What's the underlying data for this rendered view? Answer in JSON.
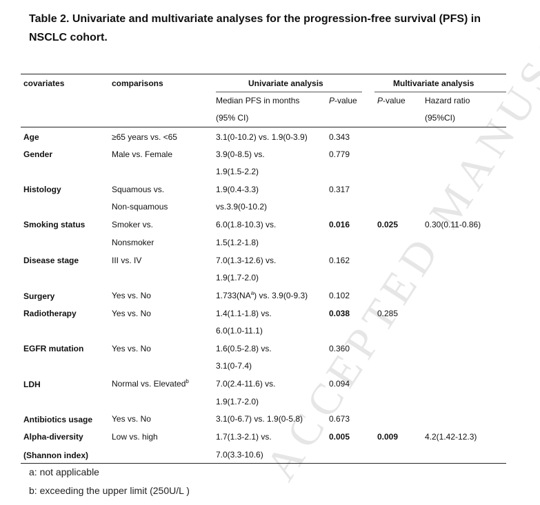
{
  "title": "Table 2. Univariate and multivariate analyses for the progression-free survival (PFS) in NSCLC cohort.",
  "watermark": "ACCEPTED MANUSCRIPT",
  "headers": {
    "covariates": "covariates",
    "comparisons": "comparisons",
    "univariate": "Univariate analysis",
    "multivariate": "Multivariate analysis",
    "median_pfs_1": "Median PFS in months",
    "median_pfs_2": "(95% CI)",
    "uni_p_italic": "P",
    "uni_p_rest": "-value",
    "multi_p_italic": "P",
    "multi_p_rest": "-value",
    "hazard_1": "Hazard ratio",
    "hazard_2": "(95%CI)"
  },
  "rows": [
    {
      "covariate": "Age",
      "comparison": "≥65 years vs. <65",
      "pfs": "3.1(0-10.2) vs. 1.9(0-3.9)",
      "p": "0.343"
    },
    {
      "covariate": "Gender",
      "comparison": "Male vs. Female",
      "pfs_1": "3.9(0-8.5) vs.",
      "pfs_2": "1.9(1.5-2.2)",
      "p": "0.779"
    },
    {
      "covariate": "Histology",
      "comparison_1": "Squamous vs.",
      "comparison_2": "Non-squamous",
      "pfs_1": "1.9(0.4-3.3)",
      "pfs_2": "vs.3.9(0-10.2)",
      "p": "0.317"
    },
    {
      "covariate": "Smoking status",
      "comparison_1": "Smoker vs.",
      "comparison_2": "Nonsmoker",
      "pfs_1": "6.0(1.8-10.3) vs.",
      "pfs_2": "1.5(1.2-1.8)",
      "p": "0.016",
      "multi_p": "0.025",
      "hr": "0.30(0.11-0.86)"
    },
    {
      "covariate": "Disease stage",
      "comparison": "III vs. IV",
      "pfs_1": "7.0(1.3-12.6) vs.",
      "pfs_2": "1.9(1.7-2.0)",
      "p": "0.162"
    },
    {
      "covariate": "Surgery",
      "comparison": "Yes vs. No",
      "pfs_a": "1.733(NA",
      "pfs_sup": "a",
      "pfs_b": ") vs. 3.9(0-9.3)",
      "p": "0.102"
    },
    {
      "covariate": "Radiotherapy",
      "comparison": "Yes vs. No",
      "pfs_1": "1.4(1.1-1.8) vs.",
      "pfs_2": "6.0(1.0-11.1)",
      "p": "0.038",
      "multi_p": "0.285"
    },
    {
      "covariate": "EGFR mutation",
      "comparison": "Yes vs. No",
      "pfs_1": "1.6(0.5-2.8) vs.",
      "pfs_2": "3.1(0-7.4)",
      "p": "0.360"
    },
    {
      "covariate": "LDH",
      "comparison": "Normal vs. Elevated",
      "comparison_sup": "b",
      "pfs_1": "7.0(2.4-11.6) vs.",
      "pfs_2": "1.9(1.7-2.0)",
      "p": "0.094"
    },
    {
      "covariate": "Antibiotics usage",
      "comparison": "Yes vs. No",
      "pfs": "3.1(0-6.7) vs. 1.9(0-5.8)",
      "p": "0.673"
    },
    {
      "covariate_1": "Alpha-diversity",
      "covariate_2": "(Shannon index)",
      "comparison": "Low vs. high",
      "pfs_1": "1.7(1.3-2.1) vs.",
      "pfs_2": "7.0(3.3-10.6)",
      "p": "0.005",
      "multi_p": "0.009",
      "hr": "4.2(1.42-12.3)"
    }
  ],
  "footnotes": {
    "a": "a: not applicable",
    "b": "b: exceeding the upper limit (250U/L )"
  }
}
